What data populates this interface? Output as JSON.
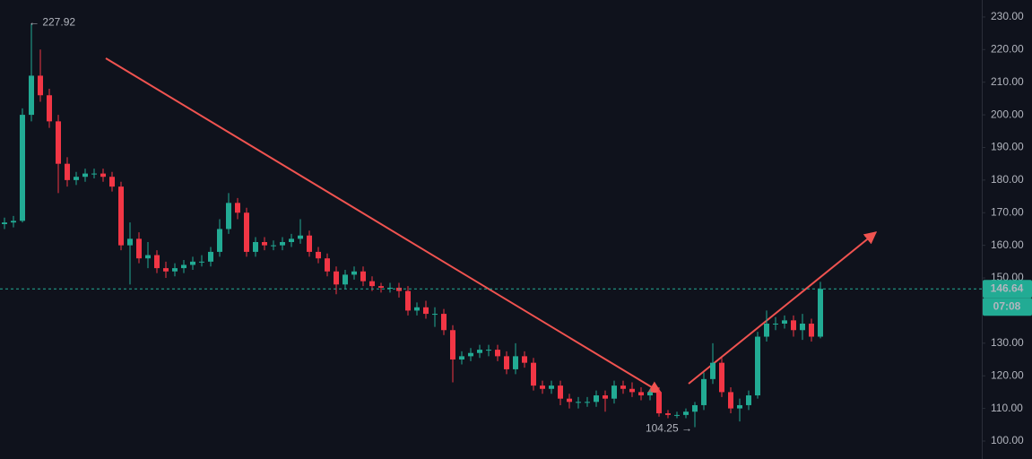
{
  "chart_data": {
    "type": "candlestick",
    "series": [
      {
        "up_color": "#22ab94",
        "down_color": "#f23645",
        "open": [
          166.5,
          167,
          167.5,
          200,
          212,
          206,
          198,
          185,
          180,
          181,
          182,
          182,
          181,
          178,
          160,
          162,
          156,
          157,
          153,
          152,
          153,
          154,
          155,
          155,
          158,
          165,
          173,
          170,
          158,
          161,
          160,
          160,
          161,
          162,
          163,
          158,
          156,
          152,
          148,
          151,
          152,
          149,
          147.5,
          147,
          147,
          146,
          140,
          141,
          139,
          139,
          134,
          125,
          126,
          127,
          128,
          128,
          126,
          122,
          126,
          124,
          117,
          116,
          117,
          113,
          112,
          112,
          112,
          114,
          113,
          117,
          116,
          115,
          114,
          115,
          108.5,
          108,
          108,
          109,
          111,
          119,
          124,
          115,
          110,
          111,
          114,
          132,
          136,
          136,
          137,
          134,
          136,
          132
        ],
        "high": [
          168.5,
          169,
          202,
          227.92,
          220,
          208,
          200,
          187,
          182.5,
          183.5,
          183.5,
          183.5,
          182.5,
          179.5,
          167,
          164,
          161,
          158.5,
          155,
          154.5,
          155.5,
          156.5,
          157,
          159.5,
          168,
          176,
          174.5,
          171.5,
          162.5,
          162.5,
          161.5,
          162.5,
          163.5,
          168,
          164.5,
          159.5,
          157.5,
          153.5,
          152.5,
          153.5,
          153.5,
          150.5,
          148.5,
          148.5,
          148.5,
          147.5,
          142.5,
          143,
          141,
          140.5,
          135.5,
          127.5,
          128.5,
          129.5,
          129.5,
          129.5,
          127.5,
          130,
          127.5,
          125.5,
          118.5,
          118.5,
          118.5,
          114.5,
          113.5,
          113.5,
          115.5,
          115.5,
          118.5,
          118.5,
          118,
          116.5,
          116,
          116.5,
          109.5,
          109,
          110,
          112,
          121,
          130,
          125.5,
          116.5,
          113,
          115.5,
          133.5,
          140,
          138,
          138.5,
          138.5,
          139,
          137.5,
          148.8
        ],
        "low": [
          165,
          165.5,
          167,
          198,
          204,
          196,
          176,
          178,
          178.5,
          179.5,
          180.5,
          179.5,
          176.5,
          158.5,
          148,
          154.5,
          153,
          151.5,
          150,
          150.5,
          151.5,
          152.5,
          153.5,
          153.5,
          156.5,
          163.5,
          168,
          156.5,
          156.5,
          158.5,
          158.5,
          158.5,
          159.5,
          160.5,
          156.5,
          154.5,
          150.5,
          145,
          146.5,
          149.5,
          147.5,
          146,
          145.5,
          145.5,
          144,
          138.5,
          138.5,
          137.5,
          135,
          132.5,
          118,
          123.5,
          124.5,
          125.5,
          126,
          124.5,
          120.5,
          120.5,
          122.5,
          115.5,
          114.5,
          114.5,
          111,
          110,
          110,
          110.5,
          110.5,
          109,
          111.5,
          114.5,
          113.5,
          112.5,
          112.5,
          107.5,
          107,
          107,
          107,
          104.25,
          109.5,
          117.5,
          113.5,
          108.5,
          106,
          109.5,
          113,
          130.5,
          134,
          134.5,
          132,
          131,
          130.5,
          131.5
        ],
        "close": [
          167,
          167.5,
          200,
          212,
          206,
          198,
          185,
          180,
          181,
          182,
          182,
          181,
          178,
          160,
          162,
          156,
          157,
          153,
          152,
          153,
          154,
          155,
          155,
          158,
          165,
          173,
          170,
          158,
          161,
          160,
          160,
          161,
          162,
          163,
          158,
          156,
          152,
          148,
          151,
          152,
          149,
          147.5,
          147,
          147,
          146,
          140,
          141,
          139,
          139,
          134,
          125,
          126,
          127,
          128,
          128,
          126,
          122,
          126,
          124,
          117,
          116,
          117,
          113,
          112,
          112,
          112,
          114,
          113,
          117,
          116,
          115,
          114,
          115,
          108.5,
          108,
          108,
          109,
          111,
          119,
          124,
          115,
          110,
          111,
          114,
          132,
          136,
          136,
          137,
          134,
          136,
          132,
          146.64
        ]
      }
    ],
    "ylim": [
      94.5,
      235.2
    ],
    "yticks": [
      {
        "value": 100,
        "label": "100.00"
      },
      {
        "value": 110,
        "label": "110.00"
      },
      {
        "value": 120,
        "label": "120.00"
      },
      {
        "value": 130,
        "label": "130.00"
      },
      {
        "value": 140,
        "label": "140.00"
      },
      {
        "value": 150,
        "label": "150.00"
      },
      {
        "value": 160,
        "label": "160.00"
      },
      {
        "value": 170,
        "label": "170.00"
      },
      {
        "value": 180,
        "label": "180.00"
      },
      {
        "value": 190,
        "label": "190.00"
      },
      {
        "value": 200,
        "label": "200.00"
      },
      {
        "value": 210,
        "label": "210.00"
      },
      {
        "value": 220,
        "label": "220.00"
      },
      {
        "value": 230,
        "label": "230.00"
      }
    ],
    "last_price": {
      "value": 146.64,
      "label": "146.64"
    },
    "countdown": "07:08",
    "high_label": "← 227.92",
    "low_label": "104.25 →"
  }
}
